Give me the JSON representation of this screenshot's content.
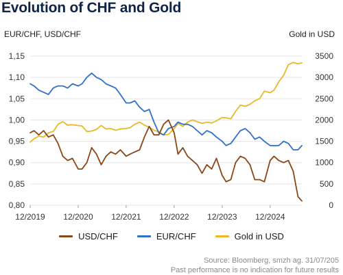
{
  "title": "Evolution of CHF and Gold",
  "source_line1": "Source: Bloomberg, smzh ag. 31/07/205",
  "source_line2": "Past performance is no indication for future results",
  "colors": {
    "usdchf": "#8b4513",
    "eurchf": "#2f6fc9",
    "gold": "#e8b923"
  },
  "chart_data": {
    "type": "line",
    "ylabel": "EUR/CHF, USD/CHF",
    "y2label": "Gold in USD",
    "ylim": [
      0.8,
      1.15
    ],
    "y2lim": [
      0,
      3500
    ],
    "yticks": [
      "1,15",
      "1,10",
      "1,05",
      "1,00",
      "0,95",
      "0,90",
      "0,85",
      "0,80"
    ],
    "y2ticks": [
      "3500",
      "3000",
      "2500",
      "2000",
      "1500",
      "1000",
      "500",
      "0"
    ],
    "xticks": [
      "12/2019",
      "12/2020",
      "12/2021",
      "12/2022",
      "12/2023",
      "12/2024"
    ],
    "xlim": [
      2019.92,
      2025.58
    ],
    "series": [
      {
        "name": "USD/CHF",
        "axis": "left",
        "x": [
          2019.92,
          2020.0,
          2020.1,
          2020.2,
          2020.3,
          2020.4,
          2020.5,
          2020.6,
          2020.7,
          2020.8,
          2020.92,
          2021.0,
          2021.1,
          2021.2,
          2021.3,
          2021.4,
          2021.5,
          2021.6,
          2021.7,
          2021.8,
          2021.92,
          2022.0,
          2022.1,
          2022.2,
          2022.3,
          2022.4,
          2022.5,
          2022.6,
          2022.7,
          2022.8,
          2022.92,
          2023.0,
          2023.1,
          2023.2,
          2023.3,
          2023.4,
          2023.5,
          2023.6,
          2023.7,
          2023.8,
          2023.92,
          2024.0,
          2024.1,
          2024.2,
          2024.3,
          2024.4,
          2024.5,
          2024.6,
          2024.7,
          2024.8,
          2024.92,
          2025.0,
          2025.1,
          2025.2,
          2025.3,
          2025.4,
          2025.5,
          2025.58
        ],
        "values": [
          0.97,
          0.975,
          0.965,
          0.975,
          0.96,
          0.965,
          0.945,
          0.915,
          0.905,
          0.91,
          0.885,
          0.885,
          0.9,
          0.935,
          0.92,
          0.895,
          0.915,
          0.925,
          0.92,
          0.93,
          0.915,
          0.92,
          0.925,
          0.93,
          0.96,
          0.985,
          0.965,
          0.965,
          0.99,
          1.0,
          0.97,
          0.92,
          0.935,
          0.915,
          0.905,
          0.895,
          0.875,
          0.895,
          0.885,
          0.91,
          0.87,
          0.855,
          0.86,
          0.9,
          0.915,
          0.91,
          0.895,
          0.86,
          0.86,
          0.855,
          0.905,
          0.915,
          0.905,
          0.9,
          0.905,
          0.88,
          0.82,
          0.81
        ]
      },
      {
        "name": "EUR/CHF",
        "axis": "left",
        "x": [
          2019.92,
          2020.0,
          2020.1,
          2020.2,
          2020.3,
          2020.4,
          2020.5,
          2020.6,
          2020.7,
          2020.8,
          2020.92,
          2021.0,
          2021.1,
          2021.2,
          2021.3,
          2021.4,
          2021.5,
          2021.6,
          2021.7,
          2021.8,
          2021.92,
          2022.0,
          2022.1,
          2022.2,
          2022.3,
          2022.4,
          2022.5,
          2022.6,
          2022.7,
          2022.8,
          2022.92,
          2023.0,
          2023.1,
          2023.2,
          2023.3,
          2023.4,
          2023.5,
          2023.6,
          2023.7,
          2023.8,
          2023.92,
          2024.0,
          2024.1,
          2024.2,
          2024.3,
          2024.4,
          2024.5,
          2024.6,
          2024.7,
          2024.8,
          2024.92,
          2025.0,
          2025.1,
          2025.2,
          2025.3,
          2025.4,
          2025.5,
          2025.58
        ],
        "values": [
          1.085,
          1.08,
          1.07,
          1.065,
          1.06,
          1.075,
          1.08,
          1.08,
          1.075,
          1.085,
          1.08,
          1.085,
          1.1,
          1.11,
          1.1,
          1.095,
          1.085,
          1.08,
          1.075,
          1.06,
          1.04,
          1.04,
          1.045,
          1.03,
          1.02,
          1.025,
          0.995,
          0.97,
          0.965,
          0.98,
          0.985,
          0.995,
          0.99,
          0.99,
          0.985,
          0.975,
          0.965,
          0.975,
          0.97,
          0.96,
          0.95,
          0.94,
          0.945,
          0.96,
          0.975,
          0.98,
          0.97,
          0.955,
          0.96,
          0.95,
          0.94,
          0.94,
          0.94,
          0.95,
          0.945,
          0.93,
          0.93,
          0.94
        ]
      },
      {
        "name": "Gold in USD",
        "axis": "right",
        "x": [
          2019.92,
          2020.0,
          2020.1,
          2020.2,
          2020.3,
          2020.4,
          2020.5,
          2020.6,
          2020.7,
          2020.8,
          2020.92,
          2021.0,
          2021.1,
          2021.2,
          2021.3,
          2021.4,
          2021.5,
          2021.6,
          2021.7,
          2021.8,
          2021.92,
          2022.0,
          2022.1,
          2022.2,
          2022.3,
          2022.4,
          2022.5,
          2022.6,
          2022.7,
          2022.8,
          2022.92,
          2023.0,
          2023.1,
          2023.2,
          2023.3,
          2023.4,
          2023.5,
          2023.6,
          2023.7,
          2023.8,
          2023.92,
          2024.0,
          2024.1,
          2024.2,
          2024.3,
          2024.4,
          2024.5,
          2024.6,
          2024.7,
          2024.8,
          2024.92,
          2025.0,
          2025.1,
          2025.2,
          2025.3,
          2025.4,
          2025.5,
          2025.58
        ],
        "values": [
          1480,
          1560,
          1620,
          1600,
          1700,
          1730,
          1900,
          1960,
          1880,
          1890,
          1870,
          1860,
          1730,
          1740,
          1780,
          1870,
          1790,
          1800,
          1760,
          1790,
          1800,
          1820,
          1900,
          1950,
          1880,
          1830,
          1760,
          1720,
          1650,
          1660,
          1800,
          1920,
          1850,
          1950,
          2000,
          1960,
          1920,
          1950,
          1930,
          1980,
          2060,
          2050,
          2030,
          2200,
          2350,
          2320,
          2370,
          2450,
          2500,
          2680,
          2640,
          2700,
          2900,
          3050,
          3300,
          3350,
          3320,
          3340
        ]
      }
    ]
  }
}
